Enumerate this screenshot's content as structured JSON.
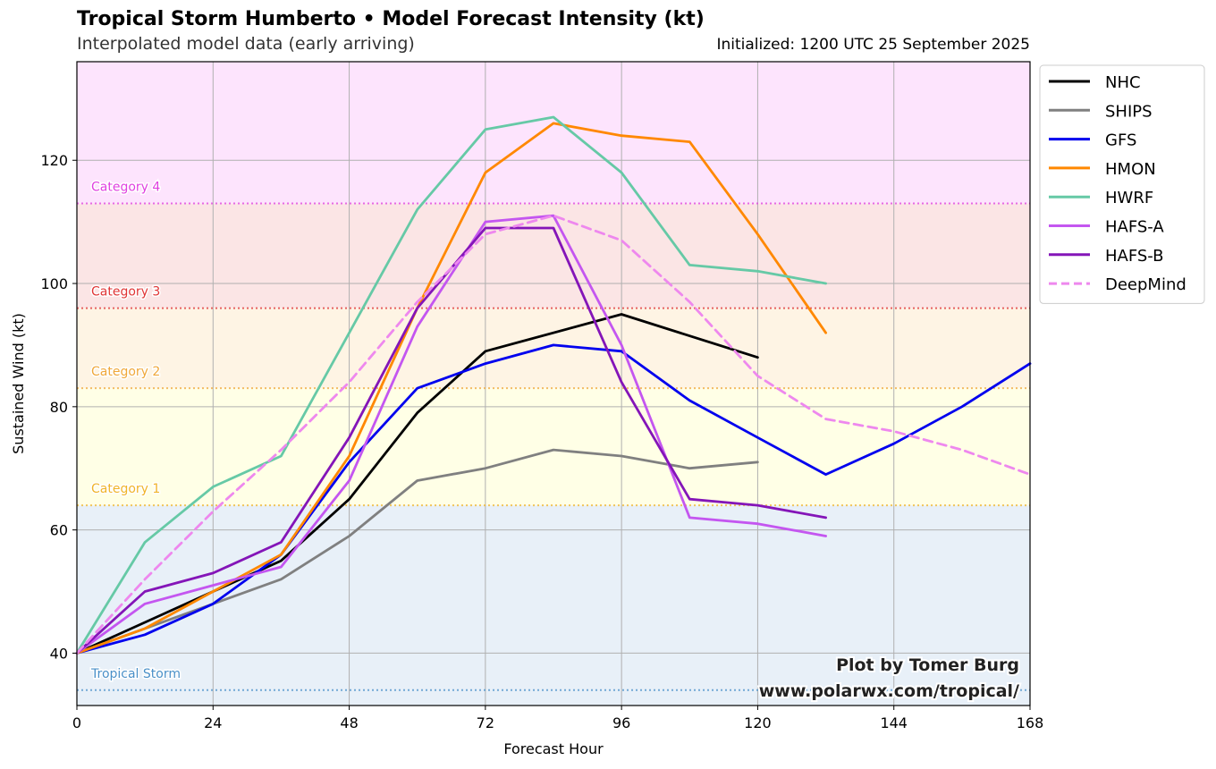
{
  "header": {
    "title": "Tropical Storm Humberto • Model Forecast Intensity (kt)",
    "subtitle": "Interpolated model data (early arriving)",
    "initialized": "Initialized: 1200 UTC 25 September 2025"
  },
  "credit": {
    "line1": "Plot by Tomer Burg",
    "line2": "www.polarwx.com/tropical/"
  },
  "chart_data": {
    "type": "line",
    "xlabel": "Forecast Hour",
    "ylabel": "Sustained Wind (kt)",
    "xlim": [
      0,
      168
    ],
    "ylim": [
      31.5,
      136
    ],
    "xticks": [
      0,
      24,
      48,
      72,
      96,
      120,
      144,
      168
    ],
    "yticks": [
      40,
      60,
      80,
      100,
      120
    ],
    "grid": true,
    "legend_position": "outside-top-right",
    "categories": [
      {
        "name": "Tropical Storm",
        "threshold": 34,
        "color": "#4a90c8",
        "band_color": "#e8f0f8",
        "band_from": 31.5,
        "band_to": 64
      },
      {
        "name": "Category 1",
        "threshold": 64,
        "color": "#f0b429",
        "band_color": "#ffffe6",
        "band_from": 64,
        "band_to": 83
      },
      {
        "name": "Category 2",
        "threshold": 83,
        "color": "#f0a83a",
        "band_color": "#fef4e4",
        "band_from": 83,
        "band_to": 96
      },
      {
        "name": "Category 3",
        "threshold": 96,
        "color": "#e03535",
        "band_color": "#fbe5e5",
        "band_from": 96,
        "band_to": 113
      },
      {
        "name": "Category 4",
        "threshold": 113,
        "color": "#e040e0",
        "band_color": "#fde4fd",
        "band_from": 113,
        "band_to": 136
      }
    ],
    "series": [
      {
        "name": "NHC",
        "color": "#000000",
        "dashed": false,
        "x": [
          0,
          12,
          24,
          36,
          48,
          60,
          72,
          96,
          120
        ],
        "values": [
          40,
          45,
          50,
          55,
          65,
          79,
          89,
          95,
          88
        ]
      },
      {
        "name": "SHIPS",
        "color": "#808080",
        "dashed": false,
        "x": [
          0,
          12,
          24,
          36,
          48,
          60,
          72,
          84,
          96,
          108,
          120
        ],
        "values": [
          40,
          44,
          48,
          52,
          59,
          68,
          70,
          73,
          72,
          70,
          71
        ]
      },
      {
        "name": "GFS",
        "color": "#0000ee",
        "dashed": false,
        "x": [
          0,
          12,
          24,
          36,
          48,
          60,
          72,
          84,
          96,
          108,
          120,
          132,
          144,
          156,
          168
        ],
        "values": [
          40,
          43,
          48,
          56,
          71,
          83,
          87,
          90,
          89,
          81,
          75,
          69,
          74,
          80,
          87
        ]
      },
      {
        "name": "HMON",
        "color": "#ff8800",
        "dashed": false,
        "x": [
          0,
          12,
          24,
          36,
          48,
          60,
          72,
          84,
          96,
          108,
          120,
          132
        ],
        "values": [
          40,
          44,
          50,
          56,
          72,
          96,
          118,
          126,
          124,
          123,
          108,
          92
        ]
      },
      {
        "name": "HWRF",
        "color": "#66c9a6",
        "dashed": false,
        "x": [
          0,
          12,
          24,
          36,
          48,
          60,
          72,
          84,
          96,
          108,
          120,
          132
        ],
        "values": [
          40,
          58,
          67,
          72,
          92,
          112,
          125,
          127,
          118,
          103,
          102,
          100
        ]
      },
      {
        "name": "HAFS-A",
        "color": "#c456f0",
        "dashed": false,
        "x": [
          0,
          12,
          24,
          36,
          48,
          60,
          72,
          84,
          96,
          108,
          120,
          132
        ],
        "values": [
          40,
          48,
          51,
          54,
          68,
          93,
          110,
          111,
          90,
          62,
          61,
          59
        ]
      },
      {
        "name": "HAFS-B",
        "color": "#8415b8",
        "dashed": false,
        "x": [
          0,
          12,
          24,
          36,
          48,
          60,
          72,
          84,
          96,
          108,
          120,
          132
        ],
        "values": [
          40,
          50,
          53,
          58,
          75,
          96,
          109,
          109,
          84,
          65,
          64,
          62
        ]
      },
      {
        "name": "DeepMind",
        "color": "#ee88ee",
        "dashed": true,
        "x": [
          0,
          12,
          24,
          36,
          48,
          60,
          72,
          84,
          96,
          108,
          120,
          132,
          144,
          156,
          168
        ],
        "values": [
          40,
          52,
          63,
          73,
          84,
          97,
          108,
          111,
          107,
          97,
          85,
          78,
          76,
          73,
          69
        ]
      }
    ]
  }
}
